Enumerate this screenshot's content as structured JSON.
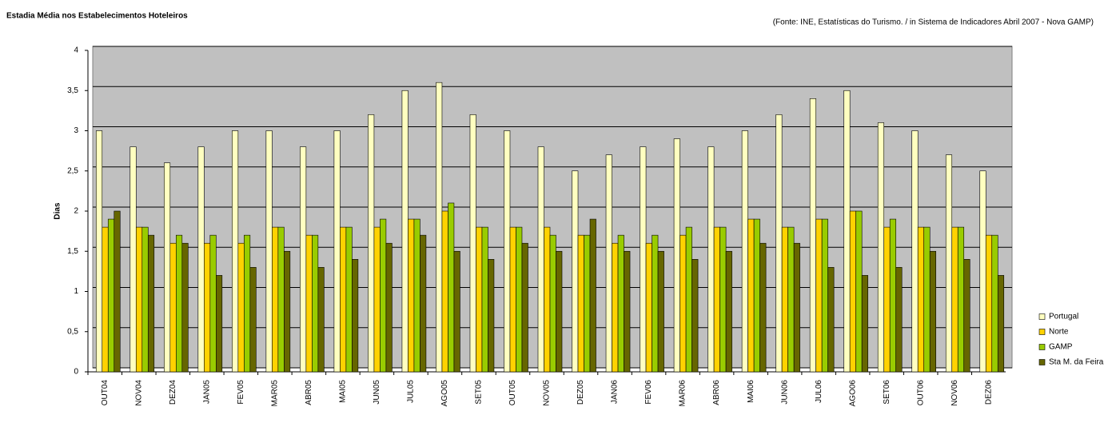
{
  "chart_data": {
    "type": "bar",
    "title": "Estadia Média nos Estabelecimentos Hoteleiros",
    "source": "(Fonte: INE, Estatísticas do Turismo.  / in Sistema de Indicadores Abril 2007 - Nova GAMP)",
    "y_label": "Dias",
    "categories": [
      "OUT04",
      "NOV04",
      "DEZ04",
      "JAN05",
      "FEV05",
      "MAR05",
      "ABR05",
      "MAI05",
      "JUN05",
      "JUL05",
      "AGO05",
      "SET05",
      "OUT05",
      "NOV05",
      "DEZ05",
      "JAN06",
      "FEV06",
      "MAR06",
      "ABR06",
      "MAI06",
      "JUN06",
      "JUL06",
      "AGO06",
      "SET06",
      "OUT06",
      "NOV06",
      "DEZ06"
    ],
    "series": [
      {
        "name": "Portugal",
        "color": "#ffffc0",
        "values": [
          3.0,
          2.8,
          2.6,
          2.8,
          3.0,
          3.0,
          2.8,
          3.0,
          3.2,
          3.5,
          3.6,
          3.2,
          3.0,
          2.8,
          2.5,
          2.7,
          2.8,
          2.9,
          2.8,
          3.0,
          3.2,
          3.4,
          3.5,
          3.1,
          3.0,
          2.7,
          2.5
        ]
      },
      {
        "name": "Norte",
        "color": "#ffd200",
        "values": [
          1.8,
          1.8,
          1.6,
          1.6,
          1.6,
          1.8,
          1.7,
          1.8,
          1.8,
          1.9,
          2.0,
          1.8,
          1.8,
          1.8,
          1.7,
          1.6,
          1.6,
          1.7,
          1.8,
          1.9,
          1.8,
          1.9,
          2.0,
          1.8,
          1.8,
          1.8,
          1.7
        ]
      },
      {
        "name": "GAMP",
        "color": "#99cc00",
        "values": [
          1.9,
          1.8,
          1.7,
          1.7,
          1.7,
          1.8,
          1.7,
          1.8,
          1.9,
          1.9,
          2.1,
          1.8,
          1.8,
          1.7,
          1.7,
          1.7,
          1.7,
          1.8,
          1.8,
          1.9,
          1.8,
          1.9,
          2.0,
          1.9,
          1.8,
          1.8,
          1.7
        ]
      },
      {
        "name": "Sta M. da Feira",
        "color": "#666600",
        "values": [
          2.0,
          1.7,
          1.6,
          1.2,
          1.3,
          1.5,
          1.3,
          1.4,
          1.6,
          1.7,
          1.5,
          1.4,
          1.6,
          1.5,
          1.9,
          1.5,
          1.5,
          1.4,
          1.5,
          1.6,
          1.6,
          1.3,
          1.2,
          1.3,
          1.5,
          1.4,
          1.2
        ]
      }
    ],
    "ylim": [
      0,
      4
    ],
    "yticks": [
      0,
      {
        "value": 0.5,
        "label": "0,5"
      },
      1,
      {
        "value": 1.5,
        "label": "1,5"
      },
      2,
      {
        "value": 2.5,
        "label": "2,5"
      },
      3,
      {
        "value": 3.5,
        "label": "3,5"
      },
      4
    ],
    "grid": true
  }
}
